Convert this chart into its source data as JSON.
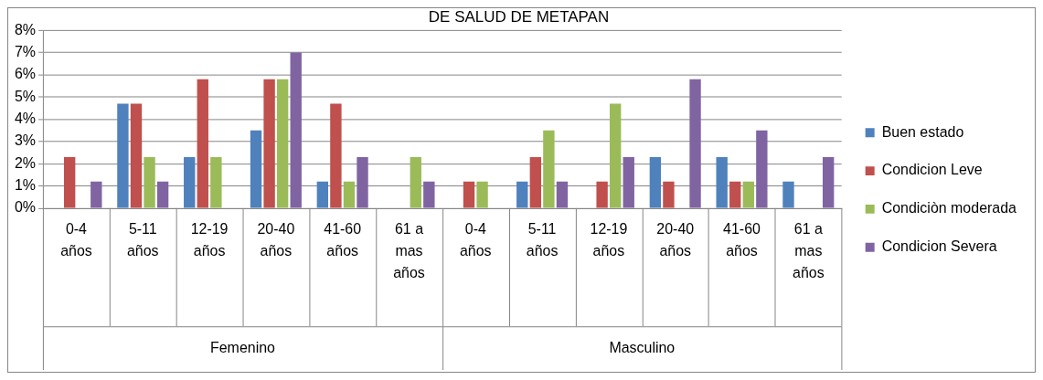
{
  "chart_data": {
    "type": "bar",
    "title": "DE SALUD DE METAPAN",
    "categories": [
      "0-4 años",
      "5-11 años",
      "12-19 años",
      "20-40 años",
      "41-60 años",
      "61 a mas años",
      "0-4 años",
      "5-11 años",
      "12-19 años",
      "20-40 años",
      "41-60 años",
      "61 a mas años"
    ],
    "annotations": [
      "Femenino",
      "Masculino"
    ],
    "series": [
      {
        "name": "Buen estado",
        "color": "#4f81bd",
        "values": [
          0,
          4.7,
          2.3,
          3.5,
          1.2,
          0,
          0,
          1.2,
          0,
          2.3,
          2.3,
          1.2
        ]
      },
      {
        "name": "Condicion Leve",
        "color": "#c0504d",
        "values": [
          2.3,
          4.7,
          5.8,
          5.8,
          4.7,
          0,
          1.2,
          2.3,
          1.2,
          1.2,
          1.2,
          0
        ]
      },
      {
        "name": "Condiciòn moderada",
        "color": "#9bbb59",
        "values": [
          0,
          2.3,
          2.3,
          5.8,
          1.2,
          2.3,
          1.2,
          3.5,
          4.7,
          0,
          1.2,
          0
        ]
      },
      {
        "name": "Condicion Severa",
        "color": "#8064a2",
        "values": [
          1.2,
          1.2,
          0,
          7.0,
          2.3,
          1.2,
          0,
          1.2,
          2.3,
          5.8,
          3.5,
          2.3
        ]
      }
    ],
    "ylim": [
      0,
      8
    ],
    "yticks": [
      {
        "value": 0,
        "label": "0%"
      },
      {
        "value": 1,
        "label": "1%"
      },
      {
        "value": 2,
        "label": "2%"
      },
      {
        "value": 3,
        "label": "3%"
      },
      {
        "value": 4,
        "label": "4%"
      },
      {
        "value": 5,
        "label": "5%"
      },
      {
        "value": 6,
        "label": "6%"
      },
      {
        "value": 7,
        "label": "7%"
      },
      {
        "value": 8,
        "label": "8%"
      }
    ],
    "grid": "y",
    "legend": "right"
  }
}
